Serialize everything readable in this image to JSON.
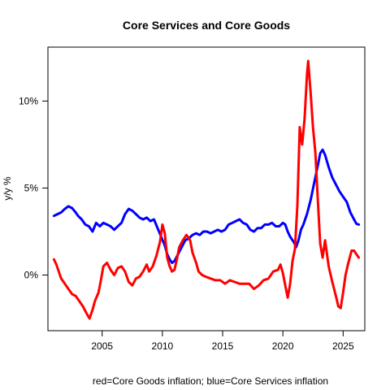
{
  "chart_data": {
    "type": "line",
    "title": "Core Services and Core Goods",
    "xlabel": "red=Core Goods inflation; blue=Core Services inflation",
    "ylabel": "y/y %",
    "xlim": [
      2000.5,
      2026.8
    ],
    "ylim": [
      -3.2,
      13.1
    ],
    "x_ticks": [
      2005,
      2010,
      2015,
      2020,
      2025
    ],
    "y_ticks": [
      {
        "value": 0,
        "label": "0%"
      },
      {
        "value": 5,
        "label": "5%"
      },
      {
        "value": 10,
        "label": "10%"
      }
    ],
    "grid": false,
    "series": [
      {
        "color": "#0000ff",
        "points": [
          [
            2001.0,
            3.4
          ],
          [
            2001.3,
            3.5
          ],
          [
            2001.6,
            3.6
          ],
          [
            2001.9,
            3.8
          ],
          [
            2002.2,
            3.95
          ],
          [
            2002.5,
            3.85
          ],
          [
            2002.8,
            3.6
          ],
          [
            2003.0,
            3.4
          ],
          [
            2003.3,
            3.2
          ],
          [
            2003.6,
            2.9
          ],
          [
            2003.9,
            2.8
          ],
          [
            2004.2,
            2.5
          ],
          [
            2004.5,
            3.0
          ],
          [
            2004.8,
            2.8
          ],
          [
            2005.1,
            3.0
          ],
          [
            2005.4,
            2.9
          ],
          [
            2005.7,
            2.8
          ],
          [
            2006.0,
            2.6
          ],
          [
            2006.3,
            2.8
          ],
          [
            2006.6,
            3.0
          ],
          [
            2006.9,
            3.5
          ],
          [
            2007.2,
            3.8
          ],
          [
            2007.5,
            3.7
          ],
          [
            2007.8,
            3.5
          ],
          [
            2008.1,
            3.3
          ],
          [
            2008.4,
            3.2
          ],
          [
            2008.7,
            3.3
          ],
          [
            2009.0,
            3.1
          ],
          [
            2009.3,
            3.2
          ],
          [
            2009.6,
            2.7
          ],
          [
            2009.9,
            2.2
          ],
          [
            2010.2,
            1.7
          ],
          [
            2010.4,
            1.2
          ],
          [
            2010.6,
            0.9
          ],
          [
            2010.8,
            0.7
          ],
          [
            2011.0,
            0.8
          ],
          [
            2011.3,
            1.2
          ],
          [
            2011.6,
            1.6
          ],
          [
            2011.9,
            2.0
          ],
          [
            2012.2,
            2.1
          ],
          [
            2012.5,
            2.3
          ],
          [
            2012.8,
            2.4
          ],
          [
            2013.1,
            2.3
          ],
          [
            2013.4,
            2.5
          ],
          [
            2013.7,
            2.5
          ],
          [
            2014.0,
            2.4
          ],
          [
            2014.3,
            2.5
          ],
          [
            2014.6,
            2.6
          ],
          [
            2014.9,
            2.5
          ],
          [
            2015.2,
            2.6
          ],
          [
            2015.5,
            2.9
          ],
          [
            2015.8,
            3.0
          ],
          [
            2016.1,
            3.1
          ],
          [
            2016.4,
            3.2
          ],
          [
            2016.7,
            3.0
          ],
          [
            2017.0,
            2.9
          ],
          [
            2017.3,
            2.6
          ],
          [
            2017.6,
            2.5
          ],
          [
            2017.9,
            2.7
          ],
          [
            2018.2,
            2.7
          ],
          [
            2018.5,
            2.9
          ],
          [
            2018.8,
            2.9
          ],
          [
            2019.1,
            3.0
          ],
          [
            2019.4,
            2.8
          ],
          [
            2019.7,
            2.8
          ],
          [
            2020.0,
            3.0
          ],
          [
            2020.2,
            2.9
          ],
          [
            2020.4,
            2.5
          ],
          [
            2020.6,
            2.2
          ],
          [
            2020.9,
            1.9
          ],
          [
            2021.1,
            1.6
          ],
          [
            2021.3,
            2.0
          ],
          [
            2021.5,
            2.6
          ],
          [
            2021.7,
            2.9
          ],
          [
            2022.0,
            3.5
          ],
          [
            2022.3,
            4.3
          ],
          [
            2022.6,
            5.3
          ],
          [
            2022.9,
            6.3
          ],
          [
            2023.1,
            7.0
          ],
          [
            2023.3,
            7.2
          ],
          [
            2023.5,
            6.9
          ],
          [
            2023.8,
            6.2
          ],
          [
            2024.1,
            5.6
          ],
          [
            2024.4,
            5.2
          ],
          [
            2024.7,
            4.8
          ],
          [
            2025.0,
            4.5
          ],
          [
            2025.3,
            4.2
          ],
          [
            2025.6,
            3.6
          ],
          [
            2025.9,
            3.2
          ],
          [
            2026.1,
            2.95
          ],
          [
            2026.3,
            2.9
          ]
        ]
      },
      {
        "color": "#ff0000",
        "points": [
          [
            2001.0,
            0.9
          ],
          [
            2001.2,
            0.6
          ],
          [
            2001.4,
            0.2
          ],
          [
            2001.6,
            -0.2
          ],
          [
            2001.9,
            -0.5
          ],
          [
            2002.2,
            -0.8
          ],
          [
            2002.5,
            -1.1
          ],
          [
            2002.8,
            -1.2
          ],
          [
            2003.1,
            -1.5
          ],
          [
            2003.4,
            -1.8
          ],
          [
            2003.7,
            -2.2
          ],
          [
            2003.95,
            -2.5
          ],
          [
            2004.2,
            -2.0
          ],
          [
            2004.4,
            -1.5
          ],
          [
            2004.7,
            -1.0
          ],
          [
            2004.9,
            -0.3
          ],
          [
            2005.1,
            0.5
          ],
          [
            2005.4,
            0.7
          ],
          [
            2005.7,
            0.3
          ],
          [
            2006.0,
            0.0
          ],
          [
            2006.3,
            0.4
          ],
          [
            2006.6,
            0.5
          ],
          [
            2006.9,
            0.2
          ],
          [
            2007.2,
            -0.4
          ],
          [
            2007.5,
            -0.6
          ],
          [
            2007.8,
            -0.2
          ],
          [
            2008.1,
            -0.1
          ],
          [
            2008.4,
            0.2
          ],
          [
            2008.7,
            0.6
          ],
          [
            2008.9,
            0.2
          ],
          [
            2009.2,
            0.5
          ],
          [
            2009.5,
            1.1
          ],
          [
            2009.8,
            1.9
          ],
          [
            2010.0,
            2.9
          ],
          [
            2010.2,
            2.4
          ],
          [
            2010.4,
            1.0
          ],
          [
            2010.6,
            0.5
          ],
          [
            2010.8,
            0.2
          ],
          [
            2011.0,
            0.3
          ],
          [
            2011.2,
            0.9
          ],
          [
            2011.4,
            1.6
          ],
          [
            2011.7,
            2.0
          ],
          [
            2012.0,
            2.3
          ],
          [
            2012.3,
            2.0
          ],
          [
            2012.5,
            1.3
          ],
          [
            2012.8,
            0.7
          ],
          [
            2013.0,
            0.2
          ],
          [
            2013.3,
            0.0
          ],
          [
            2013.6,
            -0.1
          ],
          [
            2014.0,
            -0.2
          ],
          [
            2014.4,
            -0.3
          ],
          [
            2014.8,
            -0.3
          ],
          [
            2015.2,
            -0.5
          ],
          [
            2015.6,
            -0.3
          ],
          [
            2016.0,
            -0.4
          ],
          [
            2016.4,
            -0.5
          ],
          [
            2016.8,
            -0.5
          ],
          [
            2017.2,
            -0.5
          ],
          [
            2017.6,
            -0.8
          ],
          [
            2018.0,
            -0.6
          ],
          [
            2018.4,
            -0.3
          ],
          [
            2018.8,
            -0.2
          ],
          [
            2019.2,
            0.2
          ],
          [
            2019.6,
            0.3
          ],
          [
            2019.8,
            0.6
          ],
          [
            2020.0,
            0.1
          ],
          [
            2020.2,
            -0.6
          ],
          [
            2020.4,
            -1.3
          ],
          [
            2020.6,
            -0.5
          ],
          [
            2020.8,
            0.8
          ],
          [
            2021.0,
            1.5
          ],
          [
            2021.2,
            4.0
          ],
          [
            2021.4,
            8.5
          ],
          [
            2021.6,
            7.5
          ],
          [
            2021.8,
            9.0
          ],
          [
            2022.0,
            11.5
          ],
          [
            2022.1,
            12.3
          ],
          [
            2022.3,
            10.5
          ],
          [
            2022.5,
            8.5
          ],
          [
            2022.7,
            7.0
          ],
          [
            2022.85,
            5.0
          ],
          [
            2023.0,
            3.0
          ],
          [
            2023.1,
            1.8
          ],
          [
            2023.3,
            1.0
          ],
          [
            2023.5,
            2.0
          ],
          [
            2023.8,
            0.5
          ],
          [
            2024.1,
            -0.4
          ],
          [
            2024.4,
            -1.2
          ],
          [
            2024.6,
            -1.8
          ],
          [
            2024.8,
            -1.9
          ],
          [
            2025.0,
            -1.0
          ],
          [
            2025.2,
            0.0
          ],
          [
            2025.4,
            0.6
          ],
          [
            2025.7,
            1.4
          ],
          [
            2025.9,
            1.4
          ],
          [
            2026.1,
            1.2
          ],
          [
            2026.3,
            1.0
          ]
        ]
      }
    ]
  }
}
